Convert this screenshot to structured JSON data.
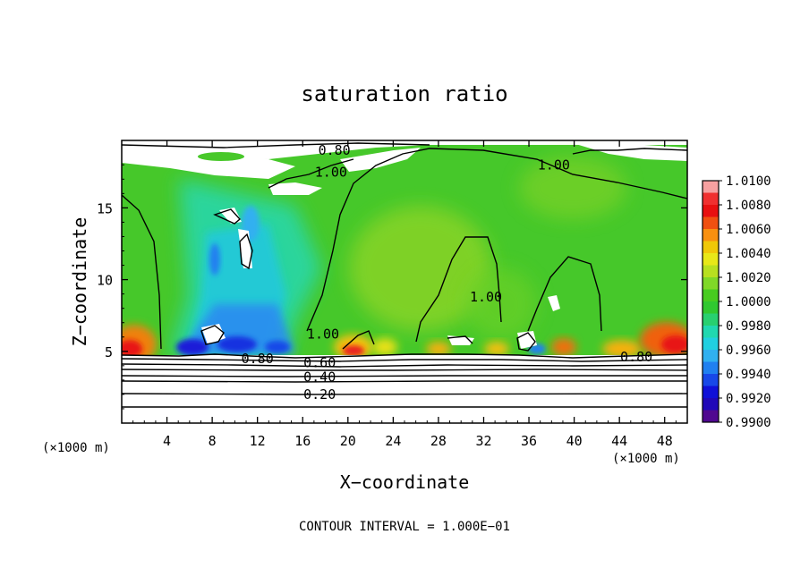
{
  "chart_data": {
    "type": "heatmap",
    "title": "saturation ratio",
    "xlabel": "X−coordinate",
    "ylabel": "Z−coordinate",
    "x_unit_left": "(×1000 m)",
    "x_unit_right": "(×1000 m)",
    "footer": "CONTOUR INTERVAL = 1.000E−01",
    "xlim": [
      0,
      50
    ],
    "ylim": [
      0,
      19.7
    ],
    "x_ticks": [
      4,
      8,
      12,
      16,
      20,
      24,
      28,
      32,
      36,
      40,
      44,
      48
    ],
    "x_tick_labels": [
      "4",
      "8",
      "12",
      "16",
      "20",
      "24",
      "28",
      "32",
      "36",
      "40",
      "44",
      "48"
    ],
    "y_ticks": [
      5,
      10,
      15
    ],
    "y_tick_labels": [
      "5",
      "10",
      "15"
    ],
    "colorbar": {
      "min": 0.99,
      "max": 1.01,
      "labels": [
        "1.0100",
        "1.0080",
        "1.0060",
        "1.0040",
        "1.0020",
        "1.0000",
        "0.9980",
        "0.9960",
        "0.9940",
        "0.9920",
        "0.9900"
      ],
      "colors": [
        "#f6a0a0",
        "#f03030",
        "#e81010",
        "#f05010",
        "#f89010",
        "#f0c808",
        "#e8e818",
        "#b8e020",
        "#80d828",
        "#48cc20",
        "#30c830",
        "#28d070",
        "#20d8b0",
        "#20d0e0",
        "#30b0f0",
        "#2080f0",
        "#1848e8",
        "#1010d8",
        "#2008b8",
        "#500890"
      ]
    },
    "contour_labels": [
      {
        "text": "0.80",
        "x": 18.8,
        "z": 19.0
      },
      {
        "text": "1.00",
        "x": 18.5,
        "z": 17.5
      },
      {
        "text": "1.00",
        "x": 38.2,
        "z": 18.0
      },
      {
        "text": "1.00",
        "x": 32.2,
        "z": 8.8
      },
      {
        "text": "1.00",
        "x": 17.8,
        "z": 6.2
      },
      {
        "text": "0.80",
        "x": 12.0,
        "z": 4.5
      },
      {
        "text": "0.60",
        "x": 17.5,
        "z": 4.2
      },
      {
        "text": "0.40",
        "x": 17.5,
        "z": 3.2
      },
      {
        "text": "0.20",
        "x": 17.5,
        "z": 2.0
      },
      {
        "text": "0.80",
        "x": 45.5,
        "z": 4.6
      }
    ]
  }
}
